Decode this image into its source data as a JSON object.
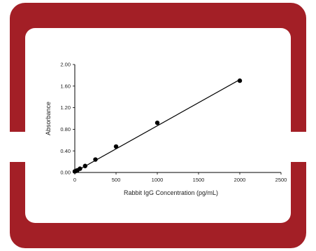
{
  "colors": {
    "frame": "#a31f26",
    "card": "#ffffff",
    "marker": "#000000",
    "line": "#000000"
  },
  "chart_data": {
    "type": "scatter",
    "title": "",
    "xlabel": "Rabbit IgG Concentration (pg/mL)",
    "ylabel": "Absorbance",
    "xlim": [
      0,
      2500
    ],
    "ylim": [
      0,
      2.0
    ],
    "x_ticks": [
      "0",
      "500",
      "1000",
      "1500",
      "2000",
      "2500"
    ],
    "y_ticks": [
      "0.00",
      "0.40",
      "0.80",
      "1.20",
      "1.60",
      "2.00"
    ],
    "grid": false,
    "legend": "none",
    "series": [
      {
        "x": [
          0,
          15.6,
          31.25,
          62.5,
          125,
          250,
          500,
          1000,
          2000
        ],
        "y": [
          0.02,
          0.03,
          0.04,
          0.07,
          0.12,
          0.24,
          0.48,
          0.92,
          1.7
        ]
      }
    ],
    "trendline": {
      "x": [
        0,
        2000
      ],
      "y": [
        0.01,
        1.72
      ]
    }
  }
}
